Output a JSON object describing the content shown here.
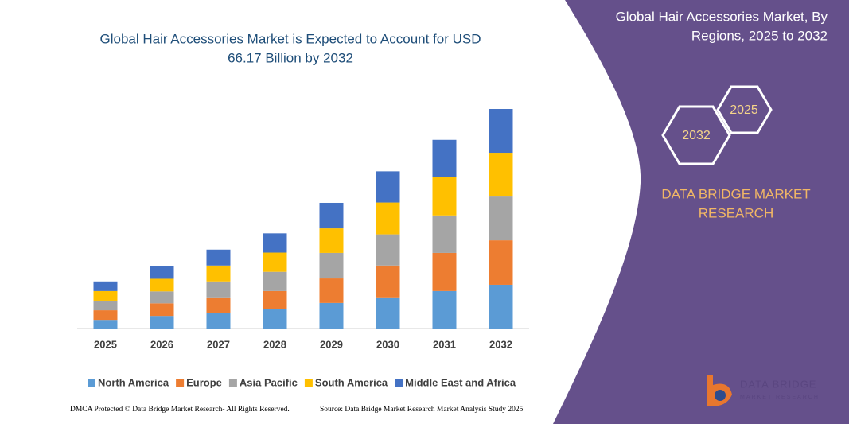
{
  "chart_data": {
    "type": "stacked_bar",
    "title": [
      "Global Hair Accessories Market is Expected to Account for USD",
      "66.17 Billion by 2032"
    ],
    "categories": [
      "2025",
      "2026",
      "2027",
      "2028",
      "2029",
      "2030",
      "2031",
      "2032"
    ],
    "series": [
      {
        "name": "North America",
        "color": "#5b9bd5",
        "values": [
          2.6,
          3.8,
          4.8,
          5.8,
          7.7,
          9.4,
          11.3,
          13.2
        ]
      },
      {
        "name": "Europe",
        "color": "#ed7d31",
        "values": [
          2.9,
          3.8,
          4.6,
          5.5,
          7.4,
          9.6,
          11.5,
          13.4
        ]
      },
      {
        "name": "Asia Pacific",
        "color": "#a5a5a5",
        "values": [
          2.9,
          3.6,
          4.8,
          5.8,
          7.7,
          9.4,
          11.3,
          13.2
        ]
      },
      {
        "name": "South America",
        "color": "#ffc000",
        "values": [
          2.9,
          3.8,
          4.8,
          5.8,
          7.4,
          9.6,
          11.5,
          13.2
        ]
      },
      {
        "name": "Middle East and Africa",
        "color": "#4472c4",
        "values": [
          2.9,
          3.8,
          4.8,
          5.8,
          7.7,
          9.4,
          11.3,
          13.2
        ]
      }
    ],
    "legend": "bottom"
  },
  "panel": {
    "title": [
      "Global Hair Accessories Market, By",
      "Regions, 2025 to 2032"
    ],
    "hex_start": "2025",
    "hex_end": "2032",
    "brand": [
      "DATA BRIDGE MARKET",
      "RESEARCH"
    ],
    "logo": [
      "DATA BRIDGE",
      "MARKET RESEARCH"
    ]
  },
  "footer": {
    "left": "DMCA Protected © Data Bridge Market Research- All Rights Reserved.",
    "right": "Source: Data Bridge Market Research Market Analysis Study 2025"
  }
}
